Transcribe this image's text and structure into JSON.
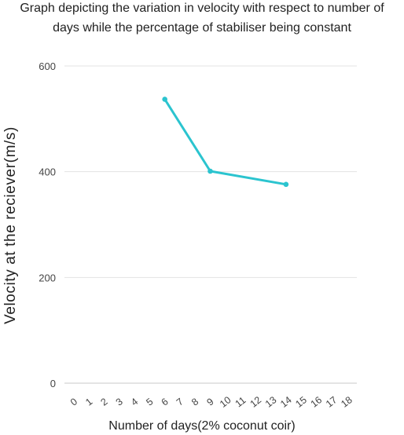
{
  "chart_data": {
    "type": "line",
    "title": "Graph depicting the variation in velocity with respect to number of days while the percentage of stabiliser being constant",
    "title_lines": [
      "Graph depicting the variation in velocity with respect to number of",
      "days while the percentage of stabiliser being constant"
    ],
    "xlabel": "Number of days(2% coconut coir)",
    "ylabel": "Velocity at the reciever(m/s)",
    "x_categories": [
      "0",
      "1",
      "2",
      "3",
      "4",
      "5",
      "6",
      "7",
      "8",
      "9",
      "10",
      "11",
      "12",
      "13",
      "14",
      "15",
      "16",
      "17",
      "18"
    ],
    "y_ticks": [
      "0",
      "200",
      "400",
      "600"
    ],
    "ylim": [
      0,
      600
    ],
    "grid": true,
    "line_color": "#2bc4cf",
    "series": [
      {
        "x": [
          6,
          9,
          14
        ],
        "y": [
          537,
          401,
          376
        ]
      }
    ]
  }
}
